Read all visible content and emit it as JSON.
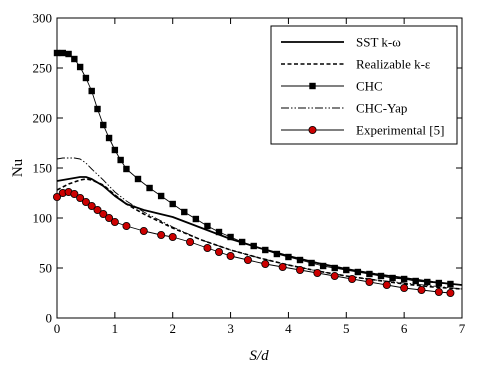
{
  "chart_data": {
    "type": "line",
    "xlabel": "S/d",
    "ylabel": "Nu",
    "xlim": [
      0,
      7
    ],
    "ylim": [
      0,
      300
    ],
    "xticks": [
      0,
      1,
      2,
      3,
      4,
      5,
      6,
      7
    ],
    "yticks": [
      0,
      50,
      100,
      150,
      200,
      250,
      300
    ],
    "grid": false,
    "legend_position": "top-right",
    "series": [
      {
        "name": "SST k-ω",
        "style": "solid-thick",
        "color": "#000000",
        "marker": "none",
        "x": [
          0,
          0.1,
          0.2,
          0.3,
          0.4,
          0.5,
          0.6,
          0.8,
          1.0,
          1.2,
          1.5,
          2.0,
          2.5,
          3.0,
          3.5,
          4.0,
          4.5,
          5.0,
          5.5,
          6.0,
          6.5,
          7.0
        ],
        "y": [
          137,
          138,
          139,
          140,
          141,
          141,
          139,
          132,
          122,
          114,
          108,
          101,
          90,
          79,
          70,
          62,
          55,
          49,
          44,
          40,
          36,
          33
        ]
      },
      {
        "name": "Realizable k-ε",
        "style": "dashed",
        "color": "#000000",
        "marker": "none",
        "x": [
          0,
          0.1,
          0.2,
          0.3,
          0.4,
          0.5,
          0.6,
          0.8,
          1.0,
          1.2,
          1.5,
          2.0,
          2.5,
          3.0,
          3.5,
          4.0,
          4.5,
          5.0,
          5.5,
          6.0,
          6.5,
          7.0
        ],
        "y": [
          128,
          131,
          134,
          136,
          138,
          139,
          138,
          133,
          123,
          114,
          104,
          90,
          78,
          68,
          60,
          53,
          47,
          42,
          38,
          34,
          31,
          29
        ]
      },
      {
        "name": "CHC",
        "style": "solid-thin",
        "color": "#000000",
        "marker": "square",
        "x": [
          0,
          0.1,
          0.2,
          0.3,
          0.4,
          0.5,
          0.6,
          0.7,
          0.8,
          0.9,
          1.0,
          1.1,
          1.2,
          1.4,
          1.6,
          1.8,
          2.0,
          2.2,
          2.4,
          2.6,
          2.8,
          3.0,
          3.2,
          3.4,
          3.6,
          3.8,
          4.0,
          4.2,
          4.4,
          4.6,
          4.8,
          5.0,
          5.2,
          5.4,
          5.6,
          5.8,
          6.0,
          6.2,
          6.4,
          6.6,
          6.8
        ],
        "y": [
          265,
          265,
          264,
          259,
          251,
          240,
          227,
          209,
          193,
          180,
          168,
          158,
          149,
          139,
          130,
          122,
          114,
          106,
          99,
          92,
          86,
          81,
          76,
          72,
          68,
          64,
          61,
          58,
          55,
          52,
          50,
          48,
          46,
          44,
          42,
          40,
          39,
          37,
          36,
          35,
          34
        ]
      },
      {
        "name": "CHC-Yap",
        "style": "dash-dot-dot",
        "color": "#000000",
        "marker": "none",
        "x": [
          0,
          0.1,
          0.2,
          0.3,
          0.4,
          0.5,
          0.6,
          0.8,
          1.0,
          1.2,
          1.5,
          2.0,
          2.5,
          3.0,
          3.5,
          4.0,
          4.5,
          5.0,
          5.5,
          6.0,
          6.5,
          7.0
        ],
        "y": [
          159,
          160,
          160,
          160,
          159,
          155,
          149,
          138,
          126,
          117,
          106,
          91,
          78,
          68,
          60,
          53,
          47,
          42,
          38,
          35,
          32,
          29
        ]
      },
      {
        "name": "Experimental [5]",
        "style": "solid-thin",
        "color": "#000000",
        "marker": "circle",
        "marker_fill": "#cc0000",
        "x": [
          0,
          0.1,
          0.2,
          0.3,
          0.4,
          0.5,
          0.6,
          0.7,
          0.8,
          0.9,
          1.0,
          1.2,
          1.5,
          1.8,
          2.0,
          2.3,
          2.6,
          2.8,
          3.0,
          3.3,
          3.6,
          3.9,
          4.2,
          4.5,
          4.8,
          5.1,
          5.4,
          5.7,
          6.0,
          6.3,
          6.6,
          6.8
        ],
        "y": [
          121,
          125,
          126,
          124,
          120,
          116,
          112,
          108,
          104,
          100,
          96,
          92,
          87,
          83,
          81,
          76,
          70,
          66,
          62,
          58,
          54,
          51,
          48,
          45,
          42,
          39,
          36,
          33,
          30,
          28,
          26,
          25
        ]
      }
    ]
  }
}
